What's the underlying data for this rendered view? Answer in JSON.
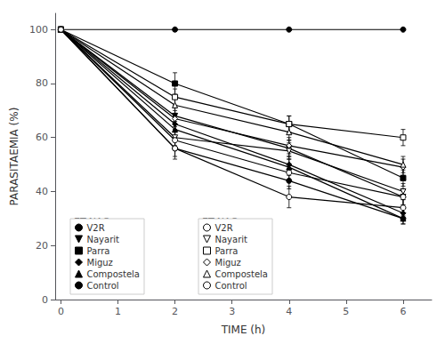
{
  "chart_data": {
    "type": "line",
    "xlabel": "TIME (h)",
    "ylabel": "PARASITAEMIA (%)",
    "xlim": [
      -0.1,
      6.5
    ],
    "ylim": [
      0,
      106
    ],
    "xticks": [
      0,
      1,
      2,
      3,
      4,
      5,
      6
    ],
    "yticks": [
      0,
      20,
      40,
      60,
      80,
      100
    ],
    "grid": false,
    "legend": "lower left",
    "color": "black",
    "annotations": [
      "ET-NAOx",
      "ET-NAOx"
    ],
    "x": [
      0,
      2,
      4,
      6
    ],
    "series": [
      {
        "name": "V2R",
        "marker": "circle",
        "values": [
          100,
          100,
          100,
          100
        ],
        "yerr": [
          0,
          0,
          0,
          0
        ]
      },
      {
        "name": "Nayarit",
        "marker": "triangle-down",
        "values": [
          100,
          68,
          56,
          38
        ],
        "yerr": [
          0,
          3,
          3,
          3
        ]
      },
      {
        "name": "Parra",
        "marker": "square",
        "values": [
          100,
          80,
          65,
          45
        ],
        "yerr": [
          0,
          4,
          3,
          3
        ]
      },
      {
        "name": "Miguz",
        "marker": "diamond",
        "values": [
          100,
          65,
          50,
          32
        ],
        "yerr": [
          0,
          3,
          3,
          2
        ]
      },
      {
        "name": "Compostela",
        "marker": "triangle-up",
        "values": [
          100,
          63,
          49,
          30
        ],
        "yerr": [
          0,
          3,
          3,
          2
        ]
      },
      {
        "name": "Control",
        "marker": "circle",
        "values": [
          100,
          56,
          44,
          30
        ],
        "yerr": [
          0,
          3,
          3,
          2
        ]
      },
      {
        "name": "V2R",
        "marker": "open-circle",
        "values": [
          100,
          56,
          38,
          34
        ],
        "yerr": [
          0,
          4,
          4,
          3
        ]
      },
      {
        "name": "Nayarit",
        "marker": "open-triangle-down",
        "values": [
          100,
          60,
          55,
          40
        ],
        "yerr": [
          0,
          3,
          3,
          3
        ]
      },
      {
        "name": "Parra",
        "marker": "open-square",
        "values": [
          100,
          75,
          65,
          60
        ],
        "yerr": [
          0,
          3,
          3,
          3
        ]
      },
      {
        "name": "Miguz",
        "marker": "open-diamond",
        "values": [
          100,
          67,
          57,
          49
        ],
        "yerr": [
          0,
          3,
          3,
          3
        ]
      },
      {
        "name": "Compostela",
        "marker": "open-triangle-up",
        "values": [
          100,
          72,
          62,
          50
        ],
        "yerr": [
          0,
          3,
          3,
          3
        ]
      },
      {
        "name": "Control",
        "marker": "open-circle",
        "values": [
          100,
          59,
          47,
          38
        ],
        "yerr": [
          0,
          3,
          3,
          3
        ]
      }
    ]
  }
}
